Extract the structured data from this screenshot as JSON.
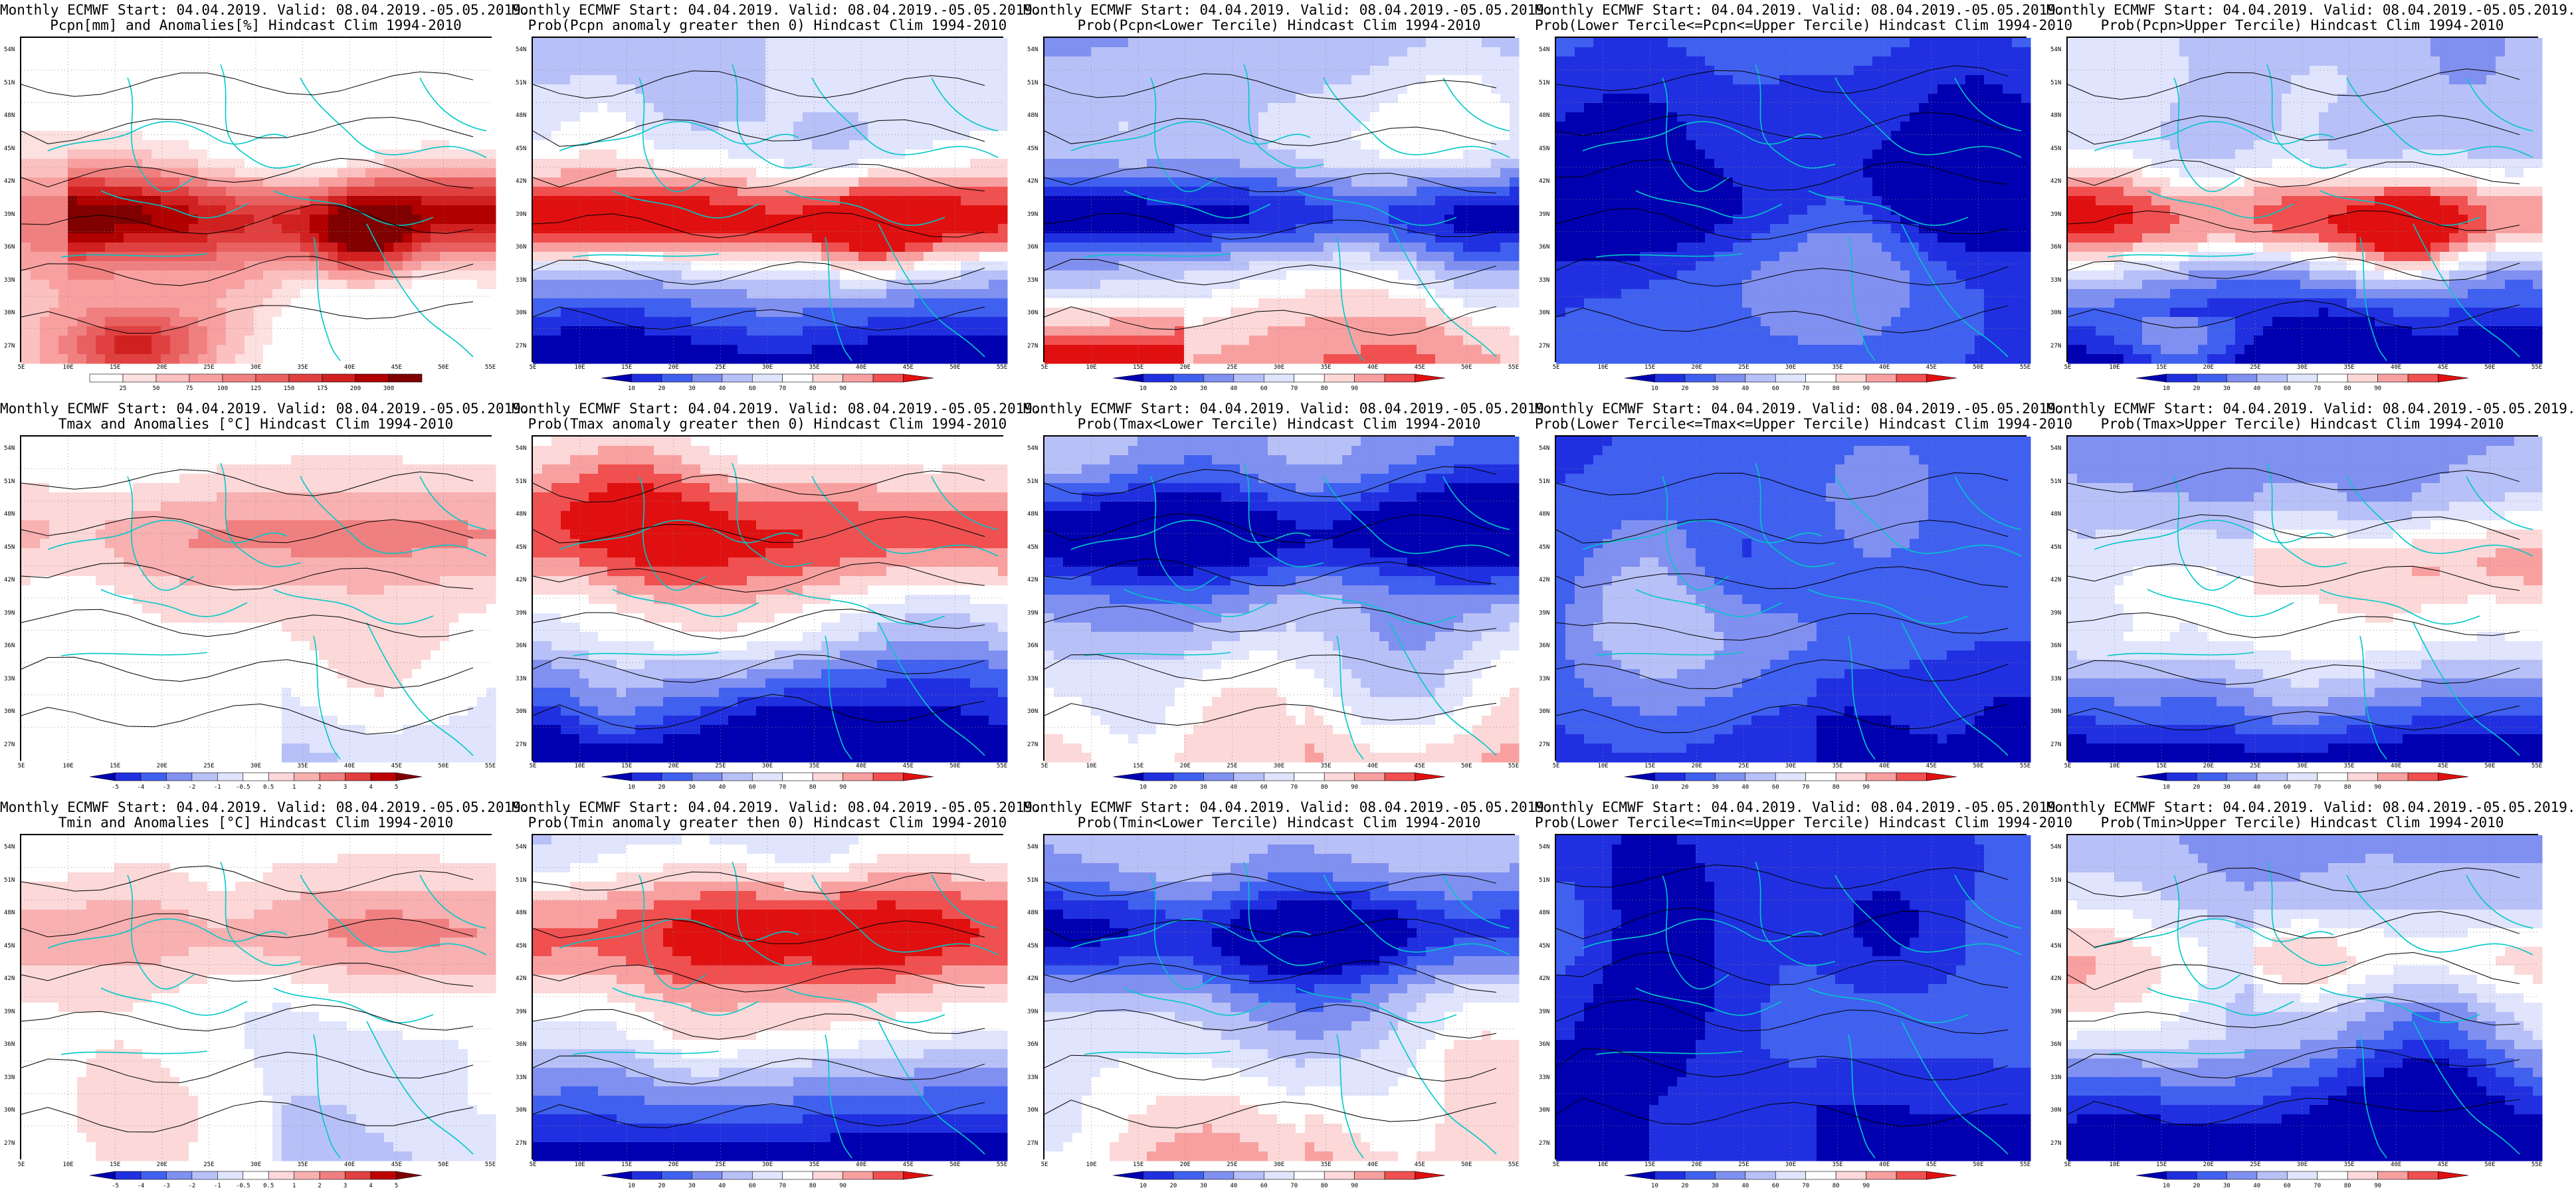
{
  "panels": [
    {
      "line1": "Monthly ECMWF Start: 04.04.2019. Valid: 08.04.2019.-05.05.2019.",
      "line2": "Pcpn[mm] and Anomalies[%] Hindcast Clim 1994-2010",
      "scale": "anom",
      "pattern": "pcpn_anom",
      "cbar_labels": [
        "25",
        "50",
        "75",
        "100",
        "125",
        "150",
        "175",
        "200",
        "300"
      ]
    },
    {
      "line1": "Monthly ECMWF Start: 04.04.2019. Valid: 08.04.2019.-05.05.2019.",
      "line2": "Prob(Pcpn anomaly greater then 0) Hindcast Clim 1994-2010",
      "scale": "prob",
      "pattern": "pcpn_pos",
      "cbar_labels": [
        "10",
        "20",
        "30",
        "40",
        "60",
        "70",
        "80",
        "90"
      ]
    },
    {
      "line1": "Monthly ECMWF Start: 04.04.2019. Valid: 08.04.2019.-05.05.2019.",
      "line2": "Prob(Pcpn<Lower Tercile) Hindcast Clim 1994-2010",
      "scale": "prob",
      "pattern": "pcpn_lower",
      "cbar_labels": [
        "10",
        "20",
        "30",
        "40",
        "60",
        "70",
        "80",
        "90"
      ]
    },
    {
      "line1": "Monthly ECMWF Start: 04.04.2019. Valid: 08.04.2019.-05.05.2019.",
      "line2": "Prob(Lower Tercile<=Pcpn<=Upper Tercile) Hindcast Clim 1994-2010",
      "scale": "prob",
      "pattern": "pcpn_mid",
      "cbar_labels": [
        "10",
        "20",
        "30",
        "40",
        "60",
        "70",
        "80",
        "90"
      ]
    },
    {
      "line1": "Monthly ECMWF Start: 04.04.2019. Valid: 08.04.2019.-05.05.2019.",
      "line2": "Prob(Pcpn>Upper Tercile) Hindcast Clim 1994-2010",
      "scale": "prob",
      "pattern": "pcpn_upper",
      "cbar_labels": [
        "10",
        "20",
        "30",
        "40",
        "60",
        "70",
        "80",
        "90"
      ]
    },
    {
      "line1": "Monthly ECMWF Start: 04.04.2019. Valid: 08.04.2019.-05.05.2019.",
      "line2": "Tmax and Anomalies [°C] Hindcast Clim 1994-2010",
      "scale": "temp",
      "pattern": "t_anom",
      "cbar_labels": [
        "-5",
        "-4",
        "-3",
        "-2",
        "-1",
        "-0.5",
        "0.5",
        "1",
        "2",
        "3",
        "4",
        "5"
      ]
    },
    {
      "line1": "Monthly ECMWF Start: 04.04.2019. Valid: 08.04.2019.-05.05.2019.",
      "line2": "Prob(Tmax anomaly greater then 0) Hindcast Clim 1994-2010",
      "scale": "prob",
      "pattern": "t_pos",
      "cbar_labels": [
        "10",
        "20",
        "30",
        "40",
        "60",
        "70",
        "80",
        "90"
      ]
    },
    {
      "line1": "Monthly ECMWF Start: 04.04.2019. Valid: 08.04.2019.-05.05.2019.",
      "line2": "Prob(Tmax<Lower Tercile) Hindcast Clim 1994-2010",
      "scale": "prob",
      "pattern": "t_lower",
      "cbar_labels": [
        "10",
        "20",
        "30",
        "40",
        "60",
        "70",
        "80",
        "90"
      ]
    },
    {
      "line1": "Monthly ECMWF Start: 04.04.2019. Valid: 08.04.2019.-05.05.2019.",
      "line2": "Prob(Lower Tercile<=Tmax<=Upper Tercile) Hindcast Clim 1994-2010",
      "scale": "prob",
      "pattern": "t_mid",
      "cbar_labels": [
        "10",
        "20",
        "30",
        "40",
        "60",
        "70",
        "80",
        "90"
      ]
    },
    {
      "line1": "Monthly ECMWF Start: 04.04.2019. Valid: 08.04.2019.-05.05.2019.",
      "line2": "Prob(Tmax>Upper Tercile) Hindcast Clim 1994-2010",
      "scale": "prob",
      "pattern": "t_upper",
      "cbar_labels": [
        "10",
        "20",
        "30",
        "40",
        "60",
        "70",
        "80",
        "90"
      ]
    },
    {
      "line1": "Monthly ECMWF Start: 04.04.2019. Valid: 08.04.2019.-05.05.2019.",
      "line2": "Tmin and Anomalies [°C] Hindcast Clim 1994-2010",
      "scale": "temp",
      "pattern": "t_anom",
      "cbar_labels": [
        "-5",
        "-4",
        "-3",
        "-2",
        "-1",
        "-0.5",
        "0.5",
        "1",
        "2",
        "3",
        "4",
        "5"
      ]
    },
    {
      "line1": "Monthly ECMWF Start: 04.04.2019. Valid: 08.04.2019.-05.05.2019.",
      "line2": "Prob(Tmin anomaly greater then 0) Hindcast Clim 1994-2010",
      "scale": "prob",
      "pattern": "t_pos",
      "cbar_labels": [
        "10",
        "20",
        "30",
        "40",
        "60",
        "70",
        "80",
        "90"
      ]
    },
    {
      "line1": "Monthly ECMWF Start: 04.04.2019. Valid: 08.04.2019.-05.05.2019.",
      "line2": "Prob(Tmin<Lower Tercile) Hindcast Clim 1994-2010",
      "scale": "prob",
      "pattern": "t_lower",
      "cbar_labels": [
        "10",
        "20",
        "30",
        "40",
        "60",
        "70",
        "80",
        "90"
      ]
    },
    {
      "line1": "Monthly ECMWF Start: 04.04.2019. Valid: 08.04.2019.-05.05.2019.",
      "line2": "Prob(Lower Tercile<=Tmin<=Upper Tercile) Hindcast Clim 1994-2010",
      "scale": "prob",
      "pattern": "t_mid",
      "cbar_labels": [
        "10",
        "20",
        "30",
        "40",
        "60",
        "70",
        "80",
        "90"
      ]
    },
    {
      "line1": "Monthly ECMWF Start: 04.04.2019. Valid: 08.04.2019.-05.05.2019.",
      "line2": "Prob(Tmin>Upper Tercile) Hindcast Clim 1994-2010",
      "scale": "prob",
      "pattern": "t_upper",
      "cbar_labels": [
        "10",
        "20",
        "30",
        "40",
        "60",
        "70",
        "80",
        "90"
      ]
    }
  ],
  "axes": {
    "x_ticks": [
      "5E",
      "10E",
      "15E",
      "20E",
      "25E",
      "30E",
      "35E",
      "40E",
      "45E",
      "50E",
      "55E"
    ],
    "y_ticks": [
      "54N",
      "51N",
      "48N",
      "45N",
      "42N",
      "39N",
      "36N",
      "33N",
      "30N",
      "27N"
    ],
    "lon_range": [
      5,
      55
    ],
    "lat_range": [
      25,
      55
    ]
  },
  "colors": {
    "anom": [
      "#ffffff",
      "#fde0e0",
      "#fbc0c0",
      "#f8a0a0",
      "#f08080",
      "#e86060",
      "#e04040",
      "#d02020",
      "#b00000",
      "#800000"
    ],
    "prob": [
      "#0000b0",
      "#2030e0",
      "#4060f0",
      "#8090f0",
      "#b8c0f8",
      "#e0e4fc",
      "#ffffff",
      "#fcd8d8",
      "#f8a0a0",
      "#f05050",
      "#e01010"
    ],
    "temp": [
      "#0000b0",
      "#2030e0",
      "#4060f0",
      "#8090f0",
      "#b8c0f8",
      "#e0e4fc",
      "#ffffff",
      "#fcd8d8",
      "#f8b0b0",
      "#f08080",
      "#e04040",
      "#c00000",
      "#800000"
    ],
    "contour": "#000000",
    "border": "#00c8c8"
  }
}
